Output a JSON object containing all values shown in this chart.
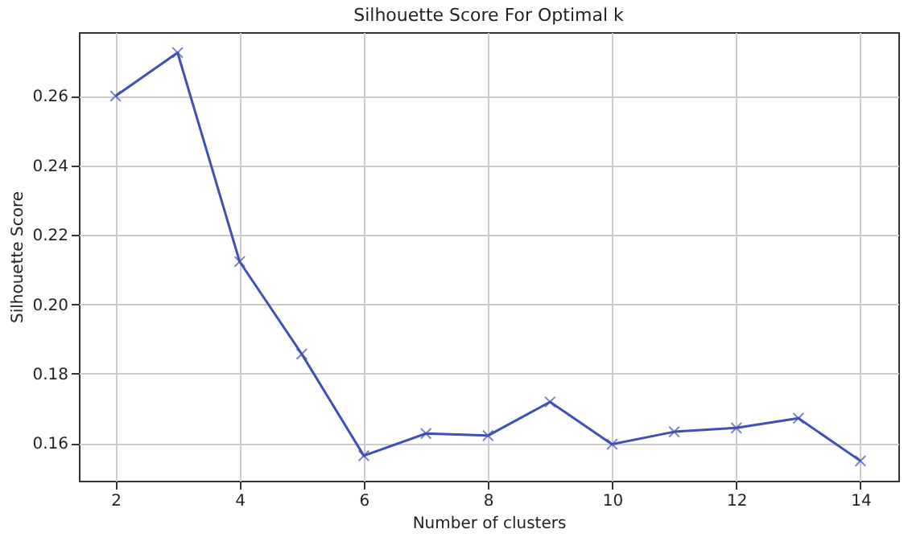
{
  "chart_data": {
    "type": "line",
    "title": "Silhouette Score For Optimal k",
    "xlabel": "Number of clusters",
    "ylabel": "Silhouette Score",
    "x": [
      2,
      3,
      4,
      5,
      6,
      7,
      8,
      9,
      10,
      11,
      12,
      13,
      14
    ],
    "series": [
      {
        "color": "#3f51b5",
        "values": [
          0.26,
          0.2725,
          0.2123,
          0.1857,
          0.1564,
          0.1628,
          0.1622,
          0.1719,
          0.1597,
          0.1633,
          0.1644,
          0.1672,
          0.1549
        ]
      }
    ],
    "xlim": [
      1.41,
      14.61
    ],
    "xticks": [
      2,
      4,
      6,
      8,
      10,
      12,
      14
    ],
    "ylim": [
      0.1492,
      0.2784
    ],
    "yticks": [
      0.16,
      0.18,
      {
        "value": 0.2,
        "label": "0.20"
      },
      0.22,
      0.24,
      0.26
    ],
    "grid": true,
    "marker": "cross",
    "line_style": "solid"
  }
}
